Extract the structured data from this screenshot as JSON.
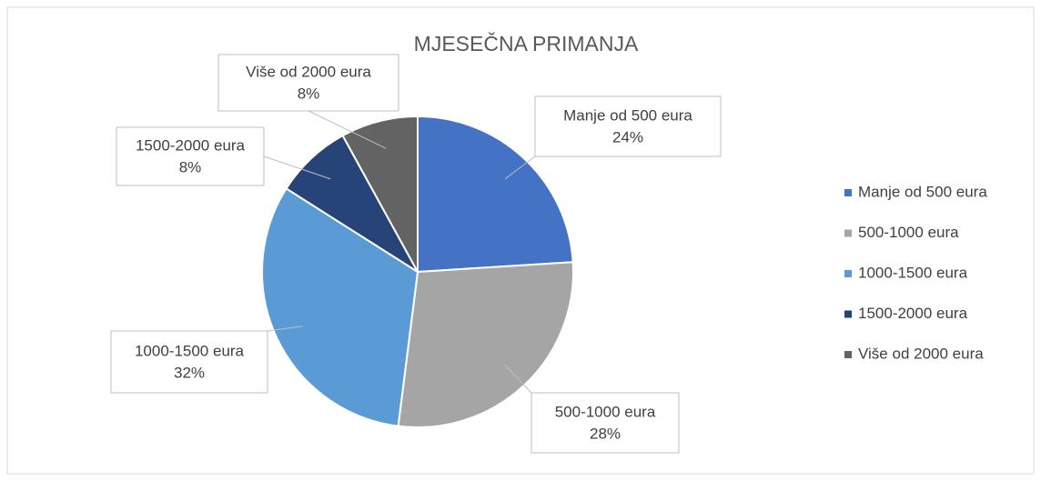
{
  "chart_data": {
    "type": "pie",
    "title": "MJESEČNA PRIMANJA",
    "categories": [
      "Manje od 500 eura",
      "500-1000 eura",
      "1000-1500 eura",
      "1500-2000 eura",
      "Više od 2000 eura"
    ],
    "values": [
      24,
      28,
      32,
      8,
      8
    ],
    "value_labels": [
      "24%",
      "28%",
      "32%",
      "8%",
      "8%"
    ],
    "colors": [
      "#4472c4",
      "#a5a5a5",
      "#5b9bd5",
      "#264478",
      "#636363"
    ],
    "legend": "right"
  }
}
